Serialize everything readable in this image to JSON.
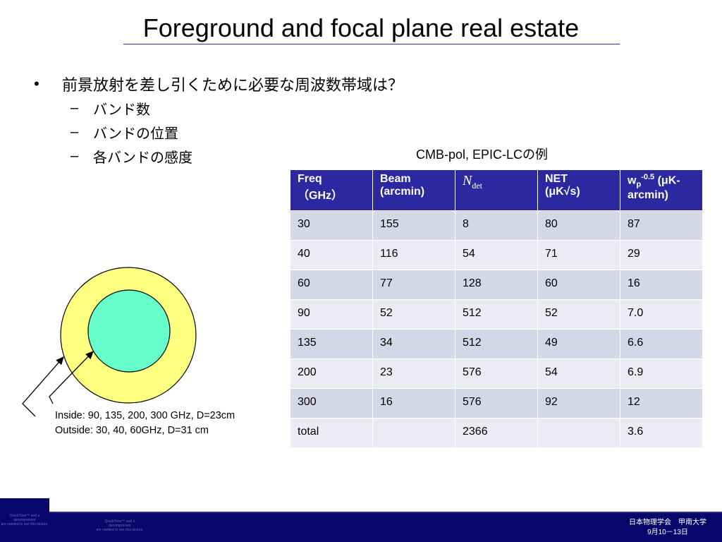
{
  "slide": {
    "title": "Foreground and focal plane real estate",
    "bullet_main": "前景放射を差し引くために必要な周波数帯域は？",
    "bullet_symbol": "•",
    "dash_symbol": "–",
    "sub_bullets": [
      "バンド数",
      "バンドの位置",
      "各バンドの感度"
    ]
  },
  "table": {
    "caption": "CMB-pol, EPIC-LCの例",
    "headers": {
      "freq_l1": "Freq",
      "freq_l2": "（GHz）",
      "beam_l1": "Beam",
      "beam_l2": "(arcmin)",
      "ndet_main": "N",
      "ndet_sub": "det",
      "net_l1": "NET",
      "net_l2": "(μK√s)",
      "wp_pre": "w",
      "wp_sub": "p",
      "wp_sup": "-0.5",
      "wp_post": " (μK-",
      "wp_l2": "arcmin)"
    },
    "rows": [
      [
        "30",
        "155",
        "8",
        "80",
        "87"
      ],
      [
        "40",
        "116",
        "54",
        "71",
        "29"
      ],
      [
        "60",
        "77",
        "128",
        "60",
        "16"
      ],
      [
        "90",
        "52",
        "512",
        "52",
        "7.0"
      ],
      [
        "135",
        "34",
        "512",
        "49",
        "6.6"
      ],
      [
        "200",
        "23",
        "576",
        "54",
        "6.9"
      ],
      [
        "300",
        "16",
        "576",
        "92",
        "12"
      ],
      [
        "total",
        "",
        "2366",
        "",
        "3.6"
      ]
    ]
  },
  "diagram": {
    "outer_color": "#ffff80",
    "inner_color": "#66ffcc",
    "note_line1": "Inside: 90, 135, 200, 300 GHz, D=23cm",
    "note_line2": "Outside: 30, 40, 60GHz, D=31 cm"
  },
  "footer": {
    "line1": "日本物理学会　甲南大学",
    "line2": "9月10－13日",
    "tiny_left": [
      "QuickTime™ and a",
      "decompressor",
      "are needed to see this picture."
    ],
    "tiny_mid": [
      "QuickTime™ and a",
      "decompressor",
      "are needed to see this picture."
    ]
  }
}
